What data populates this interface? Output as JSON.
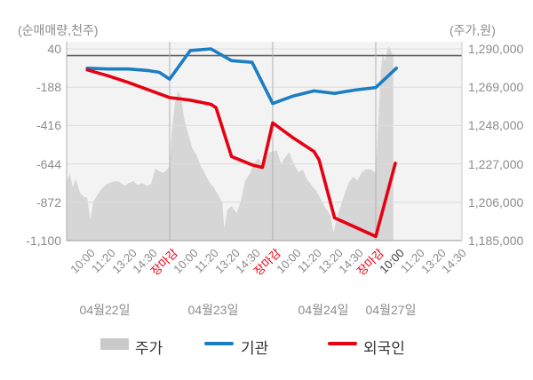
{
  "chart": {
    "left_axis_title": "(순매매량,천주)",
    "right_axis_title": "(주가,원)"
  },
  "legend": {
    "items": [
      {
        "label": "주가",
        "type": "area",
        "color": "#c9c9c9"
      },
      {
        "label": "기관",
        "type": "line",
        "color": "#1b7ec2"
      },
      {
        "label": "외국인",
        "type": "line",
        "color": "#e60012"
      }
    ]
  },
  "chart_data": {
    "type": "mixed-area-line",
    "title": "",
    "left_axis": {
      "label": "(순매매량,천주)",
      "ticks": [
        {
          "label": "40",
          "value": 40
        },
        {
          "label": "-188",
          "value": -188
        },
        {
          "label": "-416",
          "value": -416
        },
        {
          "label": "-644",
          "value": -644
        },
        {
          "label": "-872",
          "value": -872
        },
        {
          "label": "-1,100",
          "value": -1100
        }
      ],
      "range": [
        -1100,
        40
      ],
      "zero_line": true
    },
    "right_axis": {
      "label": "(주가,원)",
      "ticks": [
        {
          "label": "1,290,000",
          "value": 1290000
        },
        {
          "label": "1,269,000",
          "value": 1269000
        },
        {
          "label": "1,248,000",
          "value": 1248000
        },
        {
          "label": "1,227,000",
          "value": 1227000
        },
        {
          "label": "1,206,000",
          "value": 1206000
        },
        {
          "label": "1,185,000",
          "value": 1185000
        }
      ],
      "range": [
        1185000,
        1290000
      ]
    },
    "x_days": [
      {
        "date": "04월22일",
        "times": [
          "10:00",
          "11:20",
          "13:20",
          "14:30",
          "장마감"
        ]
      },
      {
        "date": "04월23일",
        "times": [
          "10:00",
          "11:20",
          "13:20",
          "14:30",
          "장마감"
        ]
      },
      {
        "date": "04월24일",
        "times": [
          "10:00",
          "11:20",
          "13:20",
          "14:30",
          "장마감"
        ]
      },
      {
        "date": "04월27일",
        "times": [
          "10:00",
          "11:20",
          "13:20",
          "14:30"
        ]
      }
    ],
    "close_label": "장마감",
    "current_tick": {
      "day_index": 3,
      "time_index": 0
    },
    "series": [
      {
        "name": "주가",
        "type": "area",
        "axis": "right",
        "color": "#d6d6d6",
        "points": [
          [
            0.0,
            1217500
          ],
          [
            0.03,
            1221500
          ],
          [
            0.06,
            1214000
          ],
          [
            0.09,
            1219000
          ],
          [
            0.13,
            1211000
          ],
          [
            0.17,
            1209000
          ],
          [
            0.2,
            1208500
          ],
          [
            0.23,
            1196500
          ],
          [
            0.26,
            1206500
          ],
          [
            0.3,
            1210000
          ],
          [
            0.34,
            1213500
          ],
          [
            0.39,
            1216000
          ],
          [
            0.43,
            1217000
          ],
          [
            0.48,
            1217500
          ],
          [
            0.52,
            1217000
          ],
          [
            0.56,
            1215000
          ],
          [
            0.6,
            1216500
          ],
          [
            0.65,
            1217500
          ],
          [
            0.69,
            1215500
          ],
          [
            0.73,
            1216500
          ],
          [
            0.78,
            1215000
          ],
          [
            0.82,
            1216000
          ],
          [
            0.86,
            1224500
          ],
          [
            0.9,
            1223000
          ],
          [
            0.94,
            1222000
          ],
          [
            0.97,
            1223500
          ],
          [
            1.0,
            1226000
          ],
          [
            1.02,
            1244500
          ],
          [
            1.05,
            1260000
          ],
          [
            1.08,
            1267000
          ],
          [
            1.11,
            1264000
          ],
          [
            1.14,
            1252000
          ],
          [
            1.18,
            1243500
          ],
          [
            1.22,
            1235500
          ],
          [
            1.26,
            1232000
          ],
          [
            1.3,
            1226000
          ],
          [
            1.34,
            1222000
          ],
          [
            1.38,
            1217500
          ],
          [
            1.43,
            1214000
          ],
          [
            1.47,
            1210000
          ],
          [
            1.51,
            1206000
          ],
          [
            1.53,
            1191500
          ],
          [
            1.56,
            1202000
          ],
          [
            1.6,
            1204000
          ],
          [
            1.65,
            1200000
          ],
          [
            1.69,
            1206500
          ],
          [
            1.73,
            1217500
          ],
          [
            1.78,
            1222000
          ],
          [
            1.82,
            1227500
          ],
          [
            1.86,
            1230000
          ],
          [
            1.9,
            1226500
          ],
          [
            1.94,
            1230500
          ],
          [
            1.97,
            1233500
          ],
          [
            2.0,
            1233500
          ],
          [
            2.04,
            1234500
          ],
          [
            2.08,
            1227000
          ],
          [
            2.12,
            1230500
          ],
          [
            2.16,
            1233500
          ],
          [
            2.2,
            1227500
          ],
          [
            2.25,
            1222500
          ],
          [
            2.29,
            1224000
          ],
          [
            2.33,
            1219000
          ],
          [
            2.38,
            1215000
          ],
          [
            2.42,
            1212500
          ],
          [
            2.47,
            1207500
          ],
          [
            2.51,
            1203000
          ],
          [
            2.56,
            1199000
          ],
          [
            2.59,
            1189500
          ],
          [
            2.62,
            1197000
          ],
          [
            2.66,
            1204000
          ],
          [
            2.7,
            1211000
          ],
          [
            2.74,
            1217000
          ],
          [
            2.78,
            1220000
          ],
          [
            2.82,
            1218000
          ],
          [
            2.86,
            1222000
          ],
          [
            2.9,
            1224000
          ],
          [
            2.95,
            1224000
          ],
          [
            3.0,
            1222000
          ],
          [
            3.02,
            1244500
          ],
          [
            3.05,
            1279000
          ],
          [
            3.07,
            1287500
          ],
          [
            3.09,
            1283000
          ],
          [
            3.11,
            1289000
          ],
          [
            3.13,
            1291500
          ],
          [
            3.15,
            1288500
          ],
          [
            3.17,
            1286000
          ]
        ]
      },
      {
        "name": "기관",
        "type": "line",
        "axis": "left",
        "color": "#1b7ec2",
        "points": [
          [
            0.2,
            -75
          ],
          [
            0.4,
            -80
          ],
          [
            0.6,
            -80
          ],
          [
            0.8,
            -90
          ],
          [
            0.9,
            -100
          ],
          [
            1.0,
            -140
          ],
          [
            1.2,
            30
          ],
          [
            1.4,
            40
          ],
          [
            1.6,
            -30
          ],
          [
            1.8,
            -40
          ],
          [
            2.0,
            -285
          ],
          [
            2.2,
            -240
          ],
          [
            2.4,
            -210
          ],
          [
            2.6,
            -225
          ],
          [
            2.8,
            -205
          ],
          [
            3.0,
            -190
          ],
          [
            3.2,
            -75
          ]
        ]
      },
      {
        "name": "외국인",
        "type": "line",
        "axis": "left",
        "color": "#e60012",
        "points": [
          [
            0.2,
            -85
          ],
          [
            0.4,
            -120
          ],
          [
            0.6,
            -160
          ],
          [
            0.8,
            -205
          ],
          [
            1.0,
            -250
          ],
          [
            1.2,
            -265
          ],
          [
            1.4,
            -290
          ],
          [
            1.45,
            -310
          ],
          [
            1.6,
            -600
          ],
          [
            1.8,
            -650
          ],
          [
            1.9,
            -665
          ],
          [
            2.0,
            -400
          ],
          [
            2.2,
            -490
          ],
          [
            2.4,
            -570
          ],
          [
            2.45,
            -620
          ],
          [
            2.6,
            -965
          ],
          [
            2.8,
            -1020
          ],
          [
            3.0,
            -1075
          ],
          [
            3.19,
            -640
          ]
        ]
      }
    ],
    "legend_entries": [
      "주가",
      "기관",
      "외국인"
    ],
    "grid": true,
    "legend_position": "bottom"
  }
}
